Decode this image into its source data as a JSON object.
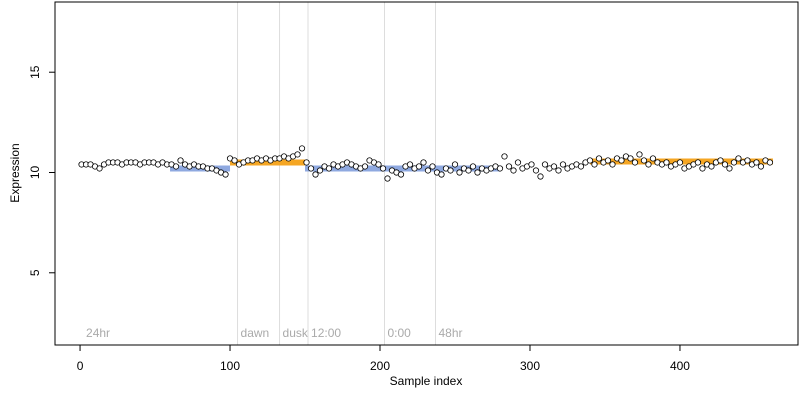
{
  "chart_data": {
    "type": "scatter",
    "x_label": "Sample index",
    "y_label": "Expression",
    "xlim": [
      -16.7,
      478.7
    ],
    "ylim": [
      1.4,
      18.5
    ],
    "xticks": [
      0,
      100,
      200,
      300,
      400
    ],
    "yticks": [
      5,
      10,
      15
    ],
    "annotations": [
      {
        "x": 2,
        "label": "24hr",
        "line": false
      },
      {
        "x": 105,
        "label": "dawn",
        "line": true
      },
      {
        "x": 133,
        "label": "dusk",
        "line": true
      },
      {
        "x": 152,
        "label": "12:00",
        "line": true
      },
      {
        "x": 203,
        "label": "0:00",
        "line": true
      },
      {
        "x": 237,
        "label": "48hr",
        "line": true
      }
    ],
    "segments": [
      {
        "x": [
          60,
          100
        ],
        "value": 10.2,
        "color": "#8fa9e0"
      },
      {
        "x": [
          100,
          150
        ],
        "value": 10.5,
        "color": "#f5a623"
      },
      {
        "x": [
          150,
          280
        ],
        "value": 10.2,
        "color": "#8fa9e0"
      },
      {
        "x": [
          340,
          462
        ],
        "value": 10.55,
        "color": "#f5a623"
      }
    ],
    "series": [
      {
        "color": "#000000",
        "x": [
          1,
          4,
          7,
          10,
          13,
          16,
          19,
          22,
          25,
          28,
          31,
          34,
          37,
          40,
          43,
          46,
          49,
          52,
          55,
          58,
          61,
          64,
          67,
          70,
          73,
          76,
          79,
          82,
          85,
          88,
          91,
          94,
          97,
          100,
          103,
          106,
          109,
          112,
          115,
          118,
          121,
          124,
          127,
          130,
          133,
          136,
          139,
          142,
          145,
          148,
          151,
          154,
          157,
          160,
          163,
          166,
          169,
          172,
          175,
          178,
          181,
          184,
          187,
          190,
          193,
          196,
          199,
          202,
          205,
          208,
          211,
          214,
          217,
          220,
          223,
          226,
          229,
          232,
          235,
          238,
          241,
          244,
          247,
          250,
          253,
          256,
          259,
          262,
          265,
          268,
          271,
          274,
          277,
          280,
          283,
          286,
          289,
          292,
          295,
          298,
          301,
          304,
          307,
          310,
          313,
          316,
          319,
          322,
          325,
          328,
          331,
          334,
          337,
          340,
          343,
          346,
          349,
          352,
          355,
          358,
          361,
          364,
          367,
          370,
          373,
          376,
          379,
          382,
          385,
          388,
          391,
          394,
          397,
          400,
          403,
          406,
          409,
          412,
          415,
          418,
          421,
          424,
          427,
          430,
          433,
          436,
          439,
          442,
          445,
          448,
          451,
          454,
          457,
          460
        ],
        "values": [
          10.4,
          10.4,
          10.4,
          10.3,
          10.2,
          10.4,
          10.5,
          10.5,
          10.5,
          10.4,
          10.5,
          10.5,
          10.5,
          10.4,
          10.5,
          10.5,
          10.5,
          10.4,
          10.5,
          10.4,
          10.4,
          10.3,
          10.6,
          10.4,
          10.3,
          10.4,
          10.3,
          10.3,
          10.2,
          10.2,
          10.1,
          10.0,
          9.9,
          10.7,
          10.6,
          10.4,
          10.5,
          10.6,
          10.6,
          10.7,
          10.6,
          10.7,
          10.6,
          10.7,
          10.7,
          10.8,
          10.7,
          10.8,
          10.9,
          11.2,
          10.5,
          10.2,
          9.9,
          10.1,
          10.3,
          10.2,
          10.4,
          10.3,
          10.4,
          10.5,
          10.4,
          10.3,
          10.2,
          10.3,
          10.6,
          10.5,
          10.4,
          10.2,
          9.7,
          10.1,
          10.0,
          9.9,
          10.3,
          10.4,
          10.2,
          10.3,
          10.5,
          10.1,
          10.3,
          10.0,
          9.9,
          10.2,
          10.1,
          10.4,
          10.0,
          10.2,
          10.1,
          10.3,
          10.0,
          10.2,
          10.1,
          10.2,
          10.3,
          10.2,
          10.8,
          10.3,
          10.1,
          10.5,
          10.2,
          10.3,
          10.4,
          10.1,
          9.8,
          10.4,
          10.2,
          10.3,
          10.1,
          10.4,
          10.2,
          10.3,
          10.4,
          10.3,
          10.5,
          10.6,
          10.4,
          10.7,
          10.5,
          10.6,
          10.4,
          10.7,
          10.6,
          10.8,
          10.7,
          10.5,
          10.9,
          10.6,
          10.4,
          10.7,
          10.5,
          10.4,
          10.5,
          10.3,
          10.4,
          10.5,
          10.2,
          10.3,
          10.4,
          10.5,
          10.2,
          10.4,
          10.3,
          10.5,
          10.6,
          10.4,
          10.2,
          10.5,
          10.7,
          10.5,
          10.6,
          10.4,
          10.5,
          10.3,
          10.6,
          10.5
        ]
      }
    ]
  }
}
